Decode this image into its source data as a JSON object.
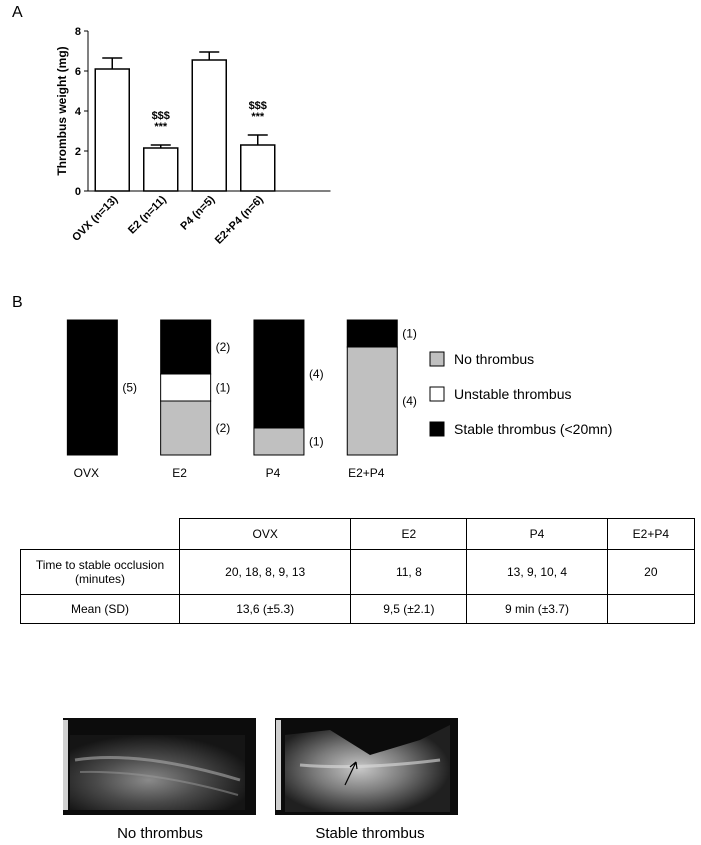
{
  "panel_labels": [
    "A",
    "B"
  ],
  "chart_data": [
    {
      "type": "bar",
      "ylabel": "Thrombus weight (mg)",
      "categories": [
        "OVX (n=13)",
        "E2 (n=11)",
        "P4 (n=5)",
        "E2+P4 (n=6)"
      ],
      "values": [
        6.1,
        2.15,
        6.55,
        2.3
      ],
      "errors": [
        0.55,
        0.15,
        0.4,
        0.5
      ],
      "annotations": [
        null,
        [
          "$$$",
          "***"
        ],
        null,
        [
          "$$$",
          "***"
        ]
      ],
      "color": "#ffffff",
      "ylim": [
        0,
        8
      ],
      "yticks": [
        0,
        2,
        4,
        6,
        8
      ]
    },
    {
      "type": "stacked_bar",
      "categories": [
        "OVX",
        "E2",
        "P4",
        "E2+P4"
      ],
      "series": [
        {
          "name": "No thrombus",
          "color": "#c0c0c0",
          "values": [
            0,
            2,
            1,
            4
          ],
          "value_labels": [
            null,
            "(2)",
            "(1)",
            "(4)"
          ]
        },
        {
          "name": "Unstable thrombus",
          "color": "#ffffff",
          "values": [
            0,
            1,
            0,
            0
          ],
          "value_labels": [
            null,
            "(1)",
            null,
            null
          ]
        },
        {
          "name": "Stable thrombus (<20mn)",
          "color": "#000000",
          "values": [
            5,
            2,
            4,
            1
          ],
          "value_labels": [
            "(5)",
            "(2)",
            "(4)",
            "(1)"
          ]
        }
      ]
    }
  ],
  "table": {
    "columns": [
      "OVX",
      "E2",
      "P4",
      "E2+P4"
    ],
    "rows": [
      {
        "label": "Time to stable occlusion (minutes)",
        "cells": [
          "20, 18, 8, 9, 13",
          "11, 8",
          "13, 9, 10, 4",
          "20"
        ]
      },
      {
        "label": "Mean (SD)",
        "cells": [
          "13,6 (±5.3)",
          "9,5 (±2.1)",
          "9 min (±3.7)",
          null
        ]
      }
    ]
  },
  "images": [
    {
      "caption": "No thrombus"
    },
    {
      "caption": "Stable thrombus"
    }
  ]
}
